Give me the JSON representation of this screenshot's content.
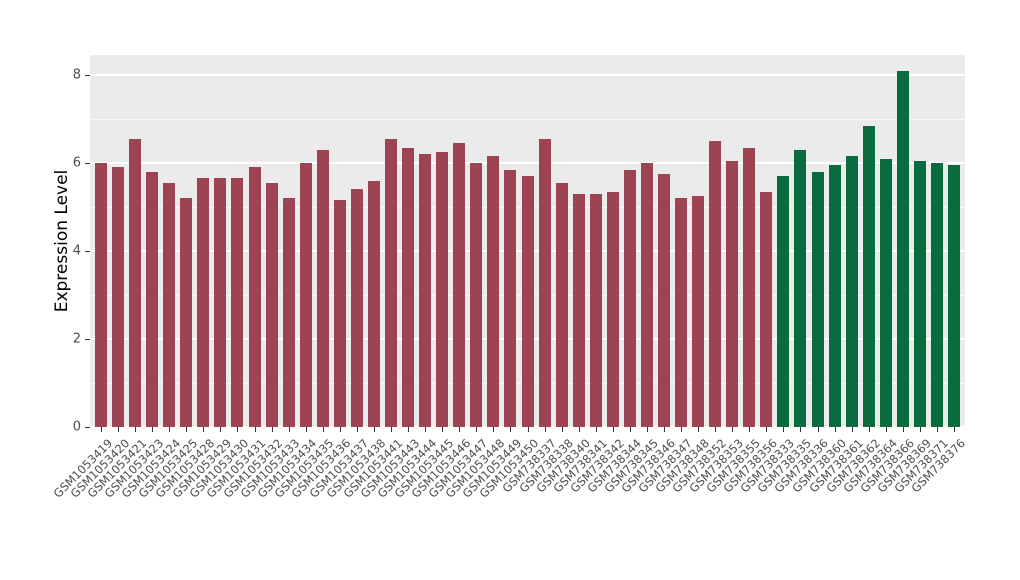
{
  "figure": {
    "background_color": "#FFFFFF",
    "panel_background_color": "#EBEBEB",
    "gridline_color": "#FFFFFF",
    "axis_text_color": "#4D4D4D"
  },
  "chart_data": {
    "type": "bar",
    "title": "",
    "xlabel": "",
    "ylabel": "Expression Level",
    "ylim": [
      0,
      8.5
    ],
    "yticks": [
      0,
      2,
      4,
      6,
      8
    ],
    "minor_gridlines": [
      1,
      3,
      5,
      7
    ],
    "grid": true,
    "legend": "none",
    "x_tick_rotation_deg": 45,
    "categories": [
      "GSM1053419",
      "GSM1053420",
      "GSM1053421",
      "GSM1053423",
      "GSM1053424",
      "GSM1053425",
      "GSM1053428",
      "GSM1053429",
      "GSM1053430",
      "GSM1053431",
      "GSM1053432",
      "GSM1053433",
      "GSM1053434",
      "GSM1053435",
      "GSM1053436",
      "GSM1053437",
      "GSM1053438",
      "GSM1053441",
      "GSM1053443",
      "GSM1053444",
      "GSM1053445",
      "GSM1053446",
      "GSM1053447",
      "GSM1053448",
      "GSM1053449",
      "GSM1053450",
      "GSM738337",
      "GSM738338",
      "GSM738340",
      "GSM738341",
      "GSM738342",
      "GSM738344",
      "GSM738345",
      "GSM738346",
      "GSM738347",
      "GSM738348",
      "GSM738352",
      "GSM738353",
      "GSM738355",
      "GSM738356",
      "GSM738333",
      "GSM738335",
      "GSM738336",
      "GSM738360",
      "GSM738361",
      "GSM738362",
      "GSM738364",
      "GSM738366",
      "GSM738369",
      "GSM738371",
      "GSM738376"
    ],
    "values": [
      6.0,
      5.9,
      6.55,
      5.8,
      5.55,
      5.2,
      5.65,
      5.65,
      5.65,
      5.9,
      5.55,
      5.2,
      6.0,
      6.3,
      5.15,
      5.4,
      5.6,
      6.55,
      6.35,
      6.2,
      6.25,
      6.45,
      6.0,
      6.15,
      5.85,
      5.7,
      6.55,
      5.55,
      5.3,
      5.3,
      5.35,
      5.85,
      6.0,
      5.75,
      5.2,
      5.25,
      6.5,
      6.05,
      6.35,
      5.35,
      5.7,
      6.3,
      5.8,
      5.95,
      6.15,
      6.85,
      6.1,
      8.1,
      6.05,
      6.0,
      5.95
    ],
    "series": [
      {
        "name": "maroon-group",
        "color": "#9E4352",
        "start_index": 0,
        "count": 40
      },
      {
        "name": "green-group",
        "color": "#0B6B40",
        "start_index": 40,
        "count": 11
      }
    ]
  }
}
